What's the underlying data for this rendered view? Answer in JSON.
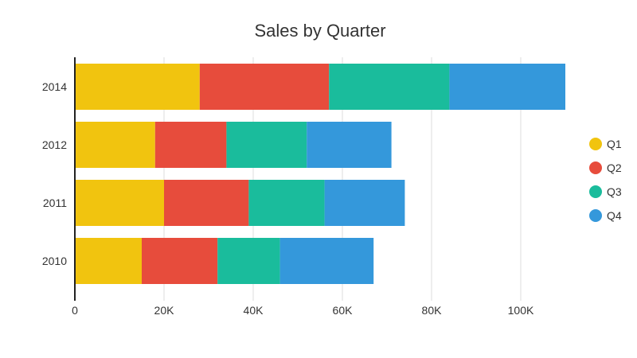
{
  "chart_data": {
    "type": "bar",
    "orientation": "horizontal",
    "stacked": true,
    "title": "Sales by Quarter",
    "xlabel": "",
    "ylabel": "",
    "categories": [
      "2014",
      "2012",
      "2011",
      "2010"
    ],
    "series": [
      {
        "name": "Q1",
        "color": "#f1c40f",
        "values": [
          28000,
          18000,
          20000,
          15000
        ]
      },
      {
        "name": "Q2",
        "color": "#e74c3c",
        "values": [
          29000,
          16000,
          19000,
          17000
        ]
      },
      {
        "name": "Q3",
        "color": "#1abc9c",
        "values": [
          27000,
          18000,
          17000,
          14000
        ]
      },
      {
        "name": "Q4",
        "color": "#3498db",
        "values": [
          26000,
          19000,
          18000,
          21000
        ]
      }
    ],
    "xlim": [
      0,
      110000
    ],
    "xticks": [
      0,
      20000,
      40000,
      60000,
      80000,
      100000
    ],
    "xtick_labels": [
      "0",
      "20K",
      "40K",
      "60K",
      "80K",
      "100K"
    ],
    "grid": "vertical",
    "legend_position": "right"
  }
}
